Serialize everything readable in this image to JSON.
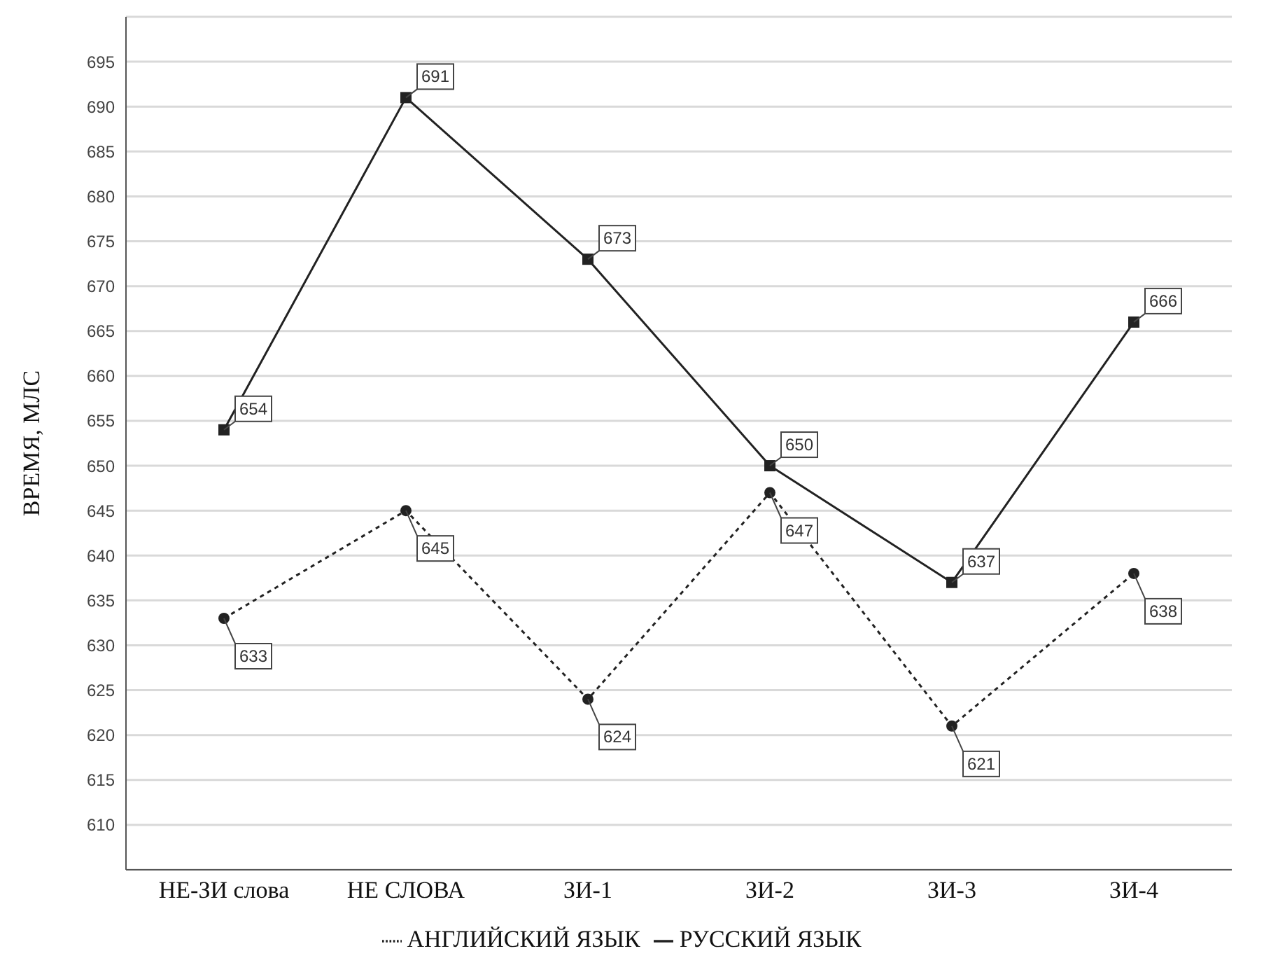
{
  "chart_data": {
    "type": "line",
    "ylabel": "ВРЕМЯ, МЛС",
    "categories": [
      "НЕ-ЗИ слова",
      "НЕ СЛОВА",
      "ЗИ-1",
      "ЗИ-2",
      "ЗИ-3",
      "ЗИ-4"
    ],
    "series": [
      {
        "name": "РУССКИЙ ЯЗЫК",
        "color": "#222222",
        "values": [
          654,
          691,
          673,
          650,
          637,
          666
        ],
        "marker": "square",
        "line_style": "solid"
      },
      {
        "name": "АНГЛИЙСКИЙ ЯЗЫК",
        "color": "#222222",
        "values": [
          633,
          645,
          624,
          647,
          621,
          638
        ],
        "marker": "circle",
        "line_style": "dotted"
      }
    ],
    "ylim": [
      605,
      700
    ],
    "yticks": [
      610,
      615,
      620,
      625,
      630,
      635,
      640,
      645,
      650,
      655,
      660,
      665,
      670,
      675,
      680,
      685,
      690,
      695
    ],
    "grid": "y",
    "legend": "bottom",
    "data_labels": true
  }
}
